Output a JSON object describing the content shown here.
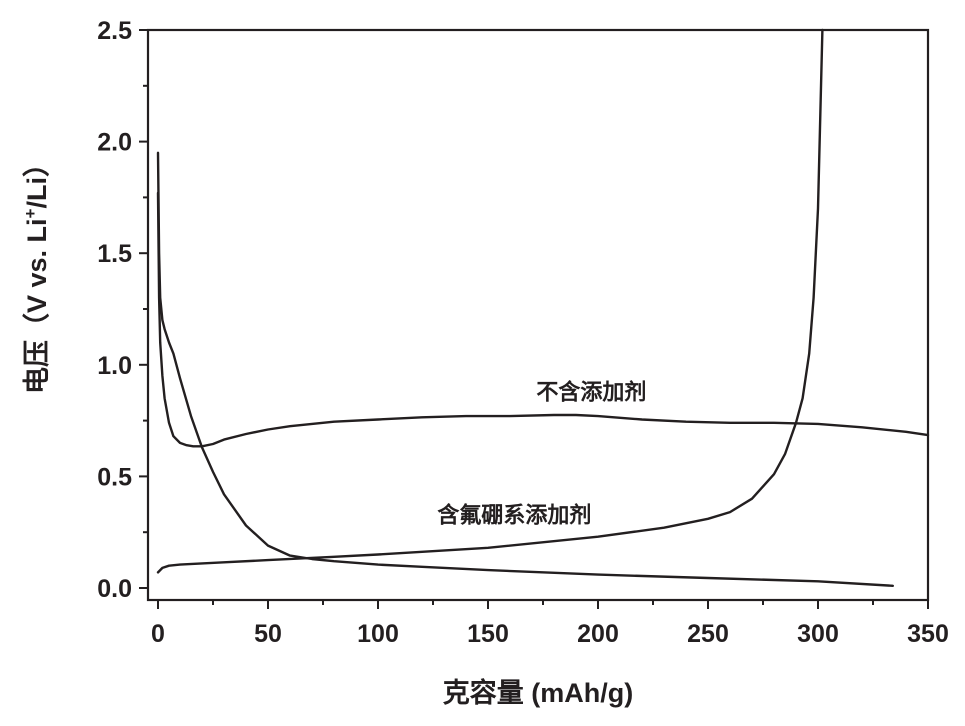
{
  "chart_data": {
    "type": "line",
    "xlabel": "克容量 (mAh/g)",
    "ylabel": {
      "main": "电压（V vs. Li",
      "superscript": "+",
      "tail": "/Li）"
    },
    "xlim": [
      0,
      350
    ],
    "ylim": [
      0,
      2.5
    ],
    "x_ticks": [
      {
        "value": 0,
        "label": "0"
      },
      {
        "value": 50,
        "label": "50"
      },
      {
        "value": 100,
        "label": "100"
      },
      {
        "value": 150,
        "label": "150"
      },
      {
        "value": 200,
        "label": "200"
      },
      {
        "value": 250,
        "label": "250"
      },
      {
        "value": 300,
        "label": "300"
      },
      {
        "value": 350,
        "label": "350"
      }
    ],
    "y_ticks": [
      {
        "value": 0,
        "label": "0.0"
      },
      {
        "value": 0.5,
        "label": "0.5"
      },
      {
        "value": 1.0,
        "label": "1.0"
      },
      {
        "value": 1.5,
        "label": "1.5"
      },
      {
        "value": 2.0,
        "label": "2.0"
      },
      {
        "value": 2.5,
        "label": "2.5"
      }
    ],
    "grid": false,
    "legend": "none",
    "line_color": "#231f20",
    "annotations": [
      {
        "text": "不含添加剂",
        "x": 197,
        "y": 0.88
      },
      {
        "text": "含氟硼系添加剂",
        "x": 162,
        "y": 0.33
      }
    ],
    "series": [
      {
        "curve": "discharge-no-additive",
        "x": [
          0,
          0.5,
          1,
          2,
          3,
          5,
          7,
          10,
          13,
          16,
          20,
          25,
          30,
          40,
          50,
          60,
          80,
          100,
          120,
          140,
          160,
          180,
          190,
          200,
          220,
          240,
          260,
          280,
          300,
          320,
          340,
          350
        ],
        "y": [
          1.77,
          1.3,
          1.1,
          0.95,
          0.85,
          0.74,
          0.68,
          0.65,
          0.64,
          0.635,
          0.635,
          0.645,
          0.665,
          0.69,
          0.71,
          0.725,
          0.745,
          0.755,
          0.765,
          0.77,
          0.77,
          0.775,
          0.775,
          0.77,
          0.755,
          0.745,
          0.74,
          0.74,
          0.735,
          0.72,
          0.7,
          0.685
        ]
      },
      {
        "curve": "discharge-fluoroboron-additive",
        "x": [
          0,
          0.5,
          1,
          2,
          3,
          5,
          7,
          10,
          15,
          20,
          25,
          30,
          40,
          50,
          60,
          70,
          80,
          100,
          120,
          150,
          200,
          250,
          300,
          334
        ],
        "y": [
          1.95,
          1.5,
          1.3,
          1.2,
          1.16,
          1.1,
          1.05,
          0.94,
          0.77,
          0.63,
          0.52,
          0.42,
          0.28,
          0.19,
          0.145,
          0.13,
          0.12,
          0.105,
          0.095,
          0.08,
          0.06,
          0.045,
          0.03,
          0.01
        ]
      },
      {
        "curve": "charge-fluoroboron-additive",
        "x": [
          0,
          2,
          5,
          10,
          20,
          30,
          50,
          80,
          100,
          150,
          200,
          230,
          250,
          260,
          270,
          280,
          285,
          290,
          293,
          296,
          298,
          300,
          301,
          302
        ],
        "y": [
          0.07,
          0.09,
          0.1,
          0.105,
          0.11,
          0.115,
          0.125,
          0.14,
          0.15,
          0.18,
          0.23,
          0.27,
          0.31,
          0.34,
          0.4,
          0.51,
          0.6,
          0.74,
          0.85,
          1.05,
          1.3,
          1.7,
          2.1,
          2.5
        ]
      }
    ]
  }
}
